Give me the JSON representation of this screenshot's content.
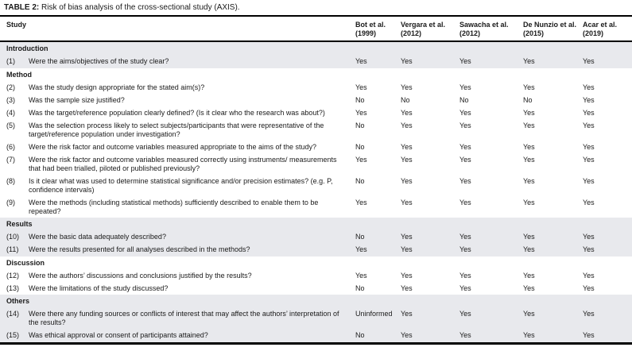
{
  "caption": {
    "label": "TABLE 2:",
    "text": "Risk of bias analysis of the cross-sectional study (AXIS)."
  },
  "table": {
    "study_header": "Study",
    "columns": [
      {
        "name": "Bot et al.",
        "year": "(1999)"
      },
      {
        "name": "Vergara et al.",
        "year": "(2012)"
      },
      {
        "name": "Sawacha et al.",
        "year": "(2012)"
      },
      {
        "name": "De Nunzio et al.",
        "year": "(2015)"
      },
      {
        "name": "Acar et al.",
        "year": "(2019)"
      }
    ],
    "sections": [
      {
        "name": "Introduction",
        "shaded": true,
        "rows": [
          {
            "num": "(1)",
            "question": "Were the aims/objectives of the study clear?",
            "values": [
              "Yes",
              "Yes",
              "Yes",
              "Yes",
              "Yes"
            ]
          }
        ]
      },
      {
        "name": "Method",
        "shaded": false,
        "rows": [
          {
            "num": "(2)",
            "question": "Was the study design appropriate for the stated aim(s)?",
            "values": [
              "Yes",
              "Yes",
              "Yes",
              "Yes",
              "Yes"
            ]
          },
          {
            "num": "(3)",
            "question": "Was the sample size justified?",
            "values": [
              "No",
              "No",
              "No",
              "No",
              "Yes"
            ]
          },
          {
            "num": "(4)",
            "question": "Was the target/reference population clearly defined? (Is it clear who the research was about?)",
            "values": [
              "Yes",
              "Yes",
              "Yes",
              "Yes",
              "Yes"
            ]
          },
          {
            "num": "(5)",
            "question": "Was the selection process likely to select subjects/participants that were representative of the target/reference population under investigation?",
            "values": [
              "No",
              "Yes",
              "Yes",
              "Yes",
              "Yes"
            ]
          },
          {
            "num": "(6)",
            "question": "Were the risk factor and outcome variables measured appropriate to the aims of the study?",
            "values": [
              "No",
              "Yes",
              "Yes",
              "Yes",
              "Yes"
            ]
          },
          {
            "num": "(7)",
            "question": "Were the risk factor and outcome variables measured correctly using instruments/ measurements that had been trialled, piloted or published previously?",
            "values": [
              "Yes",
              "Yes",
              "Yes",
              "Yes",
              "Yes"
            ]
          },
          {
            "num": "(8)",
            "question": "Is it clear what was used to determine statistical significance and/or precision estimates? (e.g. P, confidence intervals)",
            "values": [
              "No",
              "Yes",
              "Yes",
              "Yes",
              "Yes"
            ]
          },
          {
            "num": "(9)",
            "question": "Were the methods (including statistical methods) sufficiently described to enable them to be repeated?",
            "values": [
              "Yes",
              "Yes",
              "Yes",
              "Yes",
              "Yes"
            ]
          }
        ]
      },
      {
        "name": "Results",
        "shaded": true,
        "rows": [
          {
            "num": "(10)",
            "question": "Were the basic data adequately described?",
            "values": [
              "No",
              "Yes",
              "Yes",
              "Yes",
              "Yes"
            ]
          },
          {
            "num": "(11)",
            "question": "Were the results presented for all analyses described in the methods?",
            "values": [
              "Yes",
              "Yes",
              "Yes",
              "Yes",
              "Yes"
            ]
          }
        ]
      },
      {
        "name": "Discussion",
        "shaded": false,
        "rows": [
          {
            "num": "(12)",
            "question": "Were the authors’ discussions and conclusions justified by the results?",
            "values": [
              "Yes",
              "Yes",
              "Yes",
              "Yes",
              "Yes"
            ]
          },
          {
            "num": "(13)",
            "question": "Were the limitations of the study discussed?",
            "values": [
              "No",
              "Yes",
              "Yes",
              "Yes",
              "Yes"
            ]
          }
        ]
      },
      {
        "name": "Others",
        "shaded": true,
        "rows": [
          {
            "num": "(14)",
            "question": "Were there any funding sources or conflicts of interest that may affect the authors’ interpretation of the results?",
            "values": [
              "Uninformed",
              "Yes",
              "Yes",
              "Yes",
              "Yes"
            ]
          },
          {
            "num": "(15)",
            "question": "Was ethical approval or consent of participants attained?",
            "values": [
              "No",
              "Yes",
              "Yes",
              "Yes",
              "Yes"
            ]
          }
        ]
      }
    ]
  },
  "colors": {
    "shaded_band": "#e8e9ed",
    "rule": "#000000",
    "text": "#1a1a1a"
  }
}
